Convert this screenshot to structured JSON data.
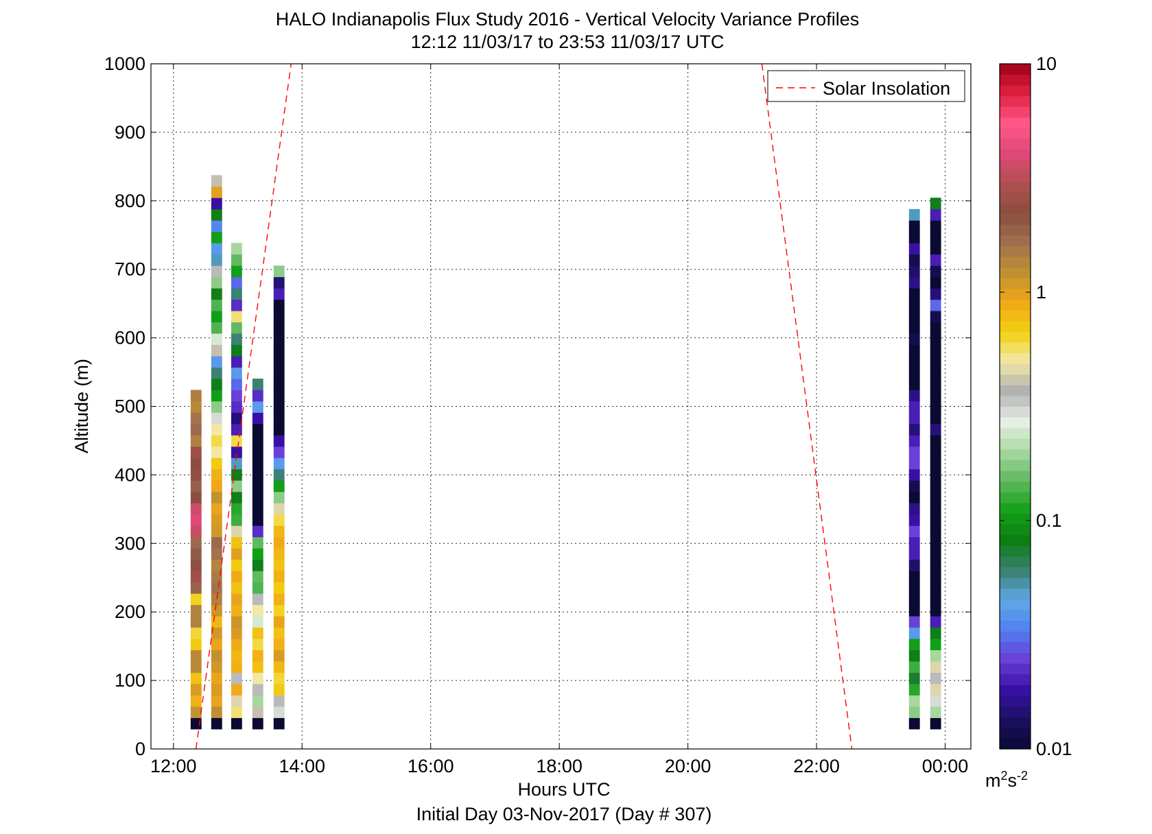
{
  "chart_data": {
    "type": "heatmap",
    "title": "HALO Indianapolis Flux Study 2016 - Vertical Velocity Variance Profiles",
    "subtitle": "12:12 11/03/17 to 23:53 11/03/17  UTC",
    "xlabel": "Hours UTC",
    "xlabel2": "Initial Day 03-Nov-2017 (Day # 307)",
    "ylabel": "Altitude (m)",
    "xlim": [
      11.65,
      24.4
    ],
    "ylim": [
      0,
      1000
    ],
    "x_ticks": [
      12,
      14,
      16,
      18,
      20,
      22,
      24
    ],
    "x_tick_labels": [
      "12:00",
      "14:00",
      "16:00",
      "18:00",
      "20:00",
      "22:00",
      "00:00"
    ],
    "y_ticks": [
      0,
      100,
      200,
      300,
      400,
      500,
      600,
      700,
      800,
      900,
      1000
    ],
    "y_tick_labels": [
      "0",
      "100",
      "200",
      "300",
      "400",
      "500",
      "600",
      "700",
      "800",
      "900",
      "1000"
    ],
    "grid": true,
    "colorbar": {
      "scale": "log",
      "min": 0.01,
      "max": 10,
      "tick_values": [
        0.01,
        0.1,
        1,
        10
      ],
      "tick_labels": [
        "0.01",
        "0.1",
        "1",
        "10"
      ],
      "unit_base": "m",
      "unit_sup1": "2",
      "unit_mid": "s",
      "unit_sup2": "-2",
      "colors": [
        "#0a0a33",
        "#1b1060",
        "#3a10a8",
        "#6a3ed8",
        "#5080f0",
        "#60a8e8",
        "#3a8070",
        "#0d7e12",
        "#12a018",
        "#60b860",
        "#a8d8a0",
        "#e8f0e6",
        "#b0b0b0",
        "#f2e8a8",
        "#f2d010",
        "#f0a818",
        "#c09030",
        "#a07050",
        "#8a4e40",
        "#b05050",
        "#e04878",
        "#ff5888",
        "#e02040",
        "#a00018"
      ]
    },
    "legend": {
      "label": "Solar Insolation",
      "placement": "top-right",
      "color": "#ff0000"
    },
    "solar_insolation": [
      {
        "x": [
          12.35,
          13.83
        ],
        "y": [
          0,
          1000
        ]
      },
      {
        "x": [
          21.15,
          22.55
        ],
        "y": [
          1000,
          0
        ]
      }
    ],
    "bin_height_m": 16.5,
    "bin_start_m": 29,
    "column_width_h": 0.165,
    "columns": [
      {
        "x": 12.35,
        "values": [
          0.01,
          1.2,
          0.85,
          1.05,
          0.75,
          1.3,
          1.3,
          0.7,
          0.62,
          1.4,
          1.4,
          0.65,
          1.85,
          2.7,
          2.3,
          2.0,
          1.75,
          3.5,
          4.1,
          3.6,
          2.25,
          1.9,
          2.4,
          2.2,
          2.6,
          1.4,
          1.75,
          1.6,
          1.3,
          1.45
        ]
      },
      {
        "x": 12.67,
        "values": [
          0.01,
          1.25,
          0.95,
          1.05,
          0.95,
          1.1,
          1.2,
          0.95,
          1.1,
          0.8,
          1.15,
          1.4,
          1.6,
          1.5,
          1.35,
          1.6,
          1.75,
          1.1,
          1.05,
          0.95,
          1.2,
          0.92,
          0.85,
          0.7,
          0.5,
          0.6,
          0.5,
          0.3,
          0.18,
          0.11,
          0.08,
          0.06,
          0.04,
          0.4,
          0.25,
          0.14,
          0.11,
          0.14,
          0.08,
          0.18,
          0.35,
          0.05,
          0.04,
          0.11,
          0.035,
          0.08,
          0.018,
          1.0,
          0.4
        ]
      },
      {
        "x": 12.98,
        "values": [
          0.01,
          0.55,
          0.45,
          0.9,
          0.35,
          0.85,
          0.8,
          0.9,
          1.05,
          1.15,
          0.85,
          0.95,
          0.75,
          0.9,
          0.7,
          1.0,
          0.75,
          0.45,
          0.13,
          0.12,
          0.08,
          0.18,
          0.08,
          0.05,
          0.018,
          0.6,
          0.02,
          0.015,
          0.022,
          0.025,
          0.03,
          0.04,
          0.02,
          0.08,
          0.06,
          0.15,
          0.55,
          0.022,
          0.06,
          0.03,
          0.11,
          0.15,
          0.2
        ]
      },
      {
        "x": 13.31,
        "values": [
          0.01,
          0.4,
          0.2,
          0.35,
          0.5,
          0.75,
          0.85,
          0.6,
          0.75,
          0.25,
          0.5,
          0.35,
          0.14,
          0.15,
          0.08,
          0.11,
          0.15,
          0.022,
          0.01,
          0.01,
          0.01,
          0.01,
          0.01,
          0.01,
          0.01,
          0.01,
          0.01,
          0.018,
          0.04,
          0.022,
          0.06
        ]
      },
      {
        "x": 13.64,
        "values": [
          0.01,
          0.3,
          0.35,
          0.7,
          0.62,
          0.8,
          1.05,
          0.85,
          0.75,
          0.95,
          0.65,
          0.85,
          0.7,
          0.85,
          0.75,
          0.8,
          0.9,
          0.8,
          0.6,
          0.45,
          0.18,
          0.11,
          0.06,
          0.04,
          0.025,
          0.018,
          0.01,
          0.01,
          0.01,
          0.01,
          0.01,
          0.01,
          0.01,
          0.01,
          0.01,
          0.01,
          0.01,
          0.01,
          0.02,
          0.015,
          0.18
        ]
      },
      {
        "x": 23.52,
        "values": [
          0.01,
          0.18,
          0.2,
          0.12,
          0.075,
          0.13,
          0.08,
          0.11,
          0.04,
          0.025,
          0.01,
          0.01,
          0.01,
          0.01,
          0.014,
          0.02,
          0.02,
          0.025,
          0.018,
          0.016,
          0.01,
          0.012,
          0.018,
          0.025,
          0.025,
          0.02,
          0.015,
          0.02,
          0.02,
          0.016,
          0.01,
          0.01,
          0.01,
          0.01,
          0.012,
          0.01,
          0.01,
          0.01,
          0.01,
          0.016,
          0.014,
          0.012,
          0.018,
          0.01,
          0.01,
          0.05
        ]
      },
      {
        "x": 23.85,
        "values": [
          0.01,
          0.2,
          0.3,
          0.45,
          0.35,
          0.45,
          0.2,
          0.11,
          0.08,
          0.02,
          0.01,
          0.01,
          0.01,
          0.01,
          0.01,
          0.01,
          0.01,
          0.01,
          0.01,
          0.01,
          0.01,
          0.01,
          0.01,
          0.01,
          0.01,
          0.01,
          0.015,
          0.01,
          0.01,
          0.01,
          0.01,
          0.01,
          0.01,
          0.01,
          0.01,
          0.01,
          0.012,
          0.03,
          0.015,
          0.01,
          0.012,
          0.02,
          0.01,
          0.01,
          0.01,
          0.02,
          0.08
        ]
      }
    ]
  }
}
